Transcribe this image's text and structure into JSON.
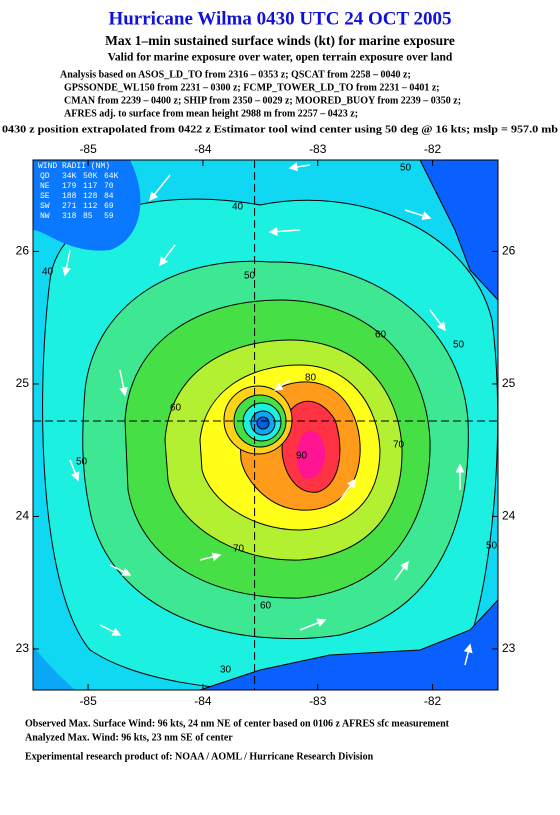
{
  "header": {
    "title": "Hurricane Wilma 0430 UTC 24 OCT 2005",
    "subtitle": "Max 1–min sustained surface winds (kt) for marine exposure",
    "validity": "Valid for marine exposure over water, open terrain exposure over land",
    "analysis": [
      "Analysis based on  ASOS_LD_TO from 2316 – 0353 z;  QSCAT from 2258 – 0040 z;",
      "GPSSONDE_WL150 from 2231 – 0300 z;  FCMP_TOWER_LD_TO from 2231 – 0401 z;",
      "CMAN from 2239 – 0400 z;  SHIP from 2350 – 0029 z;  MOORED_BUOY from 2239 – 0350 z;",
      "AFRES adj. to surface from mean height 2988 m from 2257 – 0423 z;"
    ],
    "position_note": "0430 z position extrapolated from 0422 z Estimator tool wind center using 50 deg @ 16 kts; mslp = 957.0 mb"
  },
  "map": {
    "xlim": [
      -85.48,
      -81.43
    ],
    "ylim": [
      22.69,
      26.69
    ],
    "xticks": [
      -85,
      -84,
      -83,
      -82
    ],
    "yticks": [
      23,
      24,
      25,
      26
    ],
    "center": {
      "lon": -83.55,
      "lat": 24.72
    },
    "wind_radii": {
      "title": "WIND RADII (NM)",
      "rows": [
        [
          "QD",
          "34K",
          "50K",
          "64K"
        ],
        [
          "NE",
          179,
          117,
          70
        ],
        [
          "SE",
          188,
          128,
          84
        ],
        [
          "SW",
          271,
          112,
          69
        ],
        [
          "NW",
          318,
          85,
          59
        ]
      ]
    },
    "contour_labels": [
      40,
      40,
      50,
      50,
      60,
      60,
      60,
      70,
      70,
      80,
      90,
      50,
      50,
      30,
      50
    ]
  },
  "footer": {
    "lines": [
      "Observed Max. Surface Wind: 96 kts, 24 nm NE of center based on 0106 z AFRES sfc measurement",
      "Analyzed Max. Wind: 96 kts, 23 nm SE of center",
      "Experimental research product of:  NOAA / AOML / Hurricane Research Division"
    ]
  }
}
